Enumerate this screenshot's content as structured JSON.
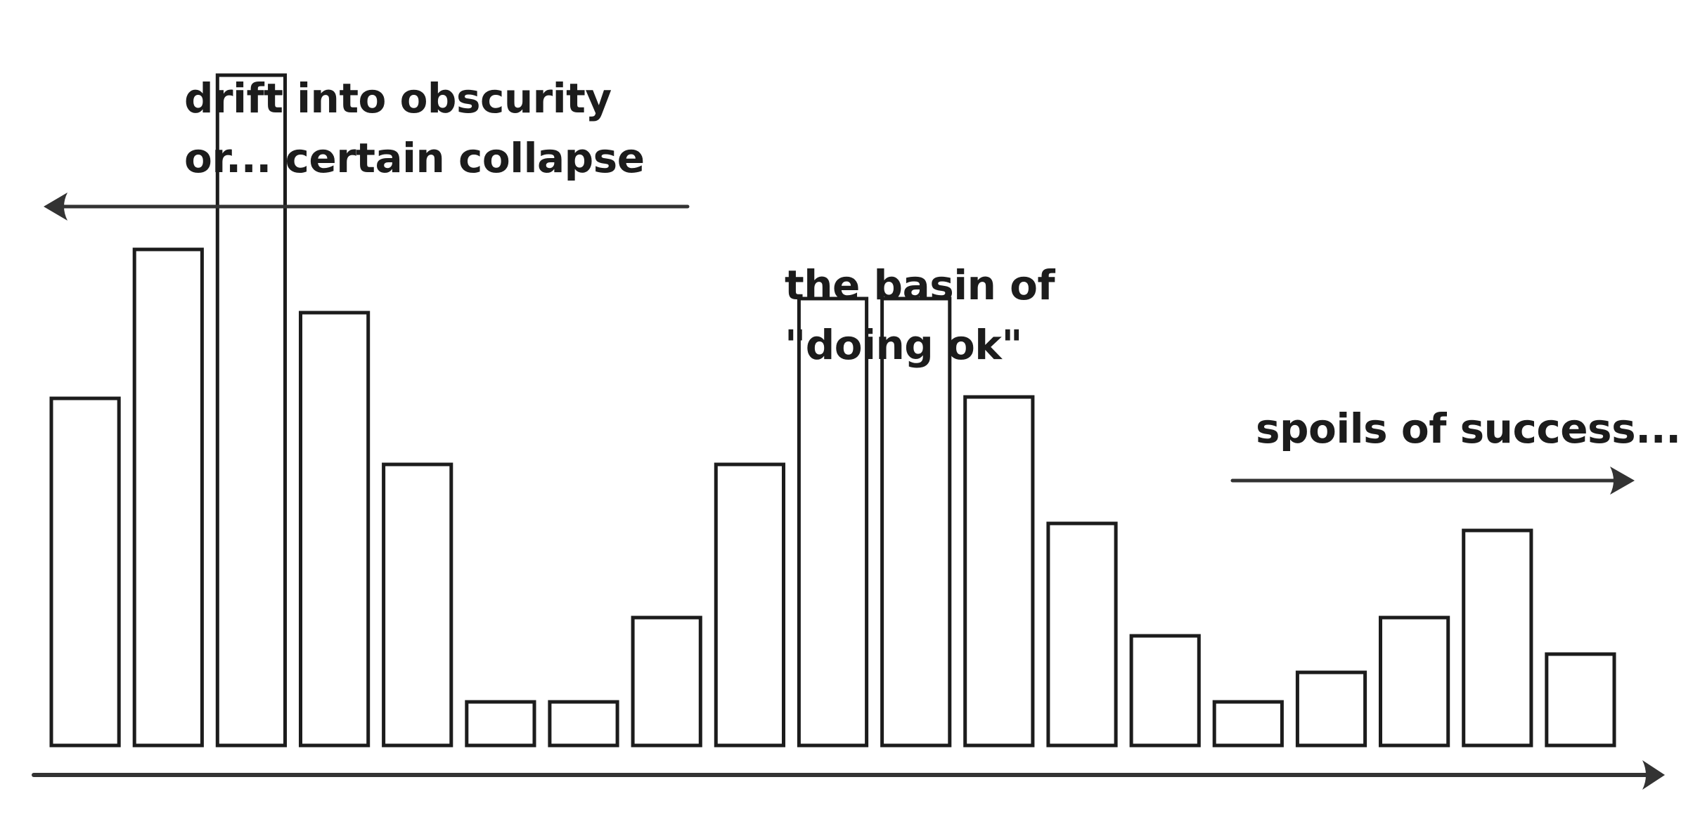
{
  "chart_data": {
    "type": "bar",
    "title": "",
    "xlabel": "",
    "ylabel": "",
    "values": [
      2.47,
      3.53,
      4.77,
      3.08,
      2.0,
      0.31,
      0.31,
      0.91,
      2.0,
      3.18,
      3.18,
      2.48,
      1.58,
      0.78,
      0.31,
      0.52,
      0.91,
      1.53,
      0.65
    ],
    "ylim": [
      0,
      5
    ],
    "grid": false,
    "legend": "none",
    "colors": {
      "bar_fill": "#ffffff",
      "bar_stroke": "#1c1c1c",
      "axis": "#333333",
      "text": "#1c1c1c"
    },
    "annotations": [
      {
        "id": "left",
        "lines": [
          "drift into obscurity",
          "or... certain collapse"
        ],
        "arrow": "left"
      },
      {
        "id": "mid",
        "lines": [
          "the basin of",
          "\"doing ok\""
        ],
        "arrow": "none"
      },
      {
        "id": "right",
        "lines": [
          "spoils of success..."
        ],
        "arrow": "right"
      }
    ]
  }
}
